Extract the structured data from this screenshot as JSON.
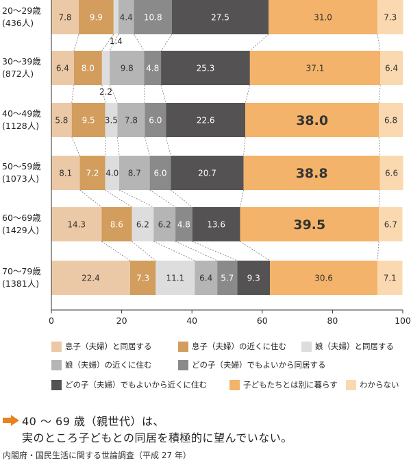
{
  "chart_data": {
    "type": "bar",
    "orientation": "horizontal-stacked",
    "categories": [
      "20〜29歳\n(436人)",
      "30〜39歳\n(872人)",
      "40〜49歳\n(1128人)",
      "50〜59歳\n(1073人)",
      "60〜69歳\n(1429人)",
      "70〜79歳\n(1381人)"
    ],
    "category_names": [
      "20〜29歳",
      "30〜39歳",
      "40〜49歳",
      "50〜59歳",
      "60〜69歳",
      "70〜79歳"
    ],
    "category_counts": [
      "(436人)",
      "(872人)",
      "(1128人)",
      "(1073人)",
      "(1429人)",
      "(1381人)"
    ],
    "series": [
      {
        "name": "息子（夫婦）と同居する",
        "color": "#ecc9a6",
        "values": [
          7.8,
          6.4,
          5.8,
          8.1,
          14.3,
          22.4
        ]
      },
      {
        "name": "息子（夫婦）の近くに住む",
        "color": "#d29d5d",
        "values": [
          9.9,
          8.0,
          9.5,
          7.2,
          8.6,
          7.3
        ]
      },
      {
        "name": "娘（夫婦）と同居する",
        "color": "#dddddd",
        "values": [
          1.4,
          2.2,
          3.5,
          4.0,
          6.2,
          11.1
        ]
      },
      {
        "name": "娘（夫婦）の近くに住む",
        "color": "#b5b5b5",
        "values": [
          4.4,
          9.8,
          7.8,
          8.7,
          6.2,
          6.4
        ]
      },
      {
        "name": "どの子（夫婦）でもよいから同居する",
        "color": "#8a8a8a",
        "values": [
          10.8,
          4.8,
          6.0,
          6.0,
          4.8,
          5.7
        ]
      },
      {
        "name": "どの子（夫婦）でもよいから近くに住む",
        "color": "#555253",
        "values": [
          27.5,
          25.3,
          22.6,
          20.7,
          13.6,
          9.3
        ]
      },
      {
        "name": "子どもたちとは別に暮らす",
        "color": "#f3b36a",
        "values": [
          31.0,
          37.1,
          38.0,
          38.8,
          39.5,
          30.6
        ]
      },
      {
        "name": "わからない",
        "color": "#fbd9b0",
        "values": [
          7.3,
          6.4,
          6.8,
          6.6,
          6.7,
          7.1
        ]
      }
    ],
    "emphasized_values": [
      "38.0",
      "38.8",
      "39.5"
    ],
    "xlim": [
      0,
      100
    ],
    "xticks": [
      "0",
      "20",
      "40",
      "60",
      "80",
      "100"
    ],
    "grid": false,
    "legend_position": "bottom"
  },
  "note": {
    "line1": "40 〜 69 歳（親世代）は、",
    "line2": "実のところ子どもとの同居を積極的に望んでいない。",
    "arrow_color": "#e8821e"
  },
  "source": "内閣府・国民生活に関する世論調査（平成 27 年）"
}
